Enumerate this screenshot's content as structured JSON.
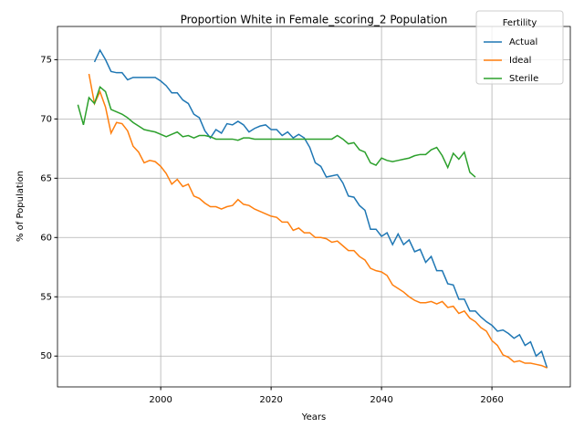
{
  "chart_data": {
    "type": "line",
    "title": "Proportion White in Female_scoring_2 Population",
    "x_label": "Years",
    "y_label": "% of Population",
    "legend_title": "Fertility",
    "legend_position": "upper right",
    "grid": true,
    "xlim": [
      1981.3,
      2074.2
    ],
    "ylim": [
      47.4,
      77.8
    ],
    "xticks": [
      2000,
      2020,
      2040,
      2060
    ],
    "yticks": [
      50,
      55,
      60,
      65,
      70,
      75
    ],
    "x": [
      1985,
      1986,
      1987,
      1988,
      1989,
      1990,
      1991,
      1992,
      1993,
      1994,
      1995,
      1996,
      1997,
      1998,
      1999,
      2000,
      2001,
      2002,
      2003,
      2004,
      2005,
      2006,
      2007,
      2008,
      2009,
      2010,
      2011,
      2012,
      2013,
      2014,
      2015,
      2016,
      2017,
      2018,
      2019,
      2020,
      2021,
      2022,
      2023,
      2024,
      2025,
      2026,
      2027,
      2028,
      2029,
      2030,
      2031,
      2032,
      2033,
      2034,
      2035,
      2036,
      2037,
      2038,
      2039,
      2040,
      2041,
      2042,
      2043,
      2044,
      2045,
      2046,
      2047,
      2048,
      2049,
      2050,
      2051,
      2052,
      2053,
      2054,
      2055,
      2056,
      2057,
      2058,
      2059,
      2060,
      2061,
      2062,
      2063,
      2064,
      2065,
      2066,
      2067,
      2068,
      2069,
      2070
    ],
    "series": [
      {
        "name": "Actual",
        "color": "#1f77b4",
        "values": [
          null,
          null,
          null,
          74.8,
          75.8,
          75.0,
          74.0,
          73.9,
          73.9,
          73.3,
          73.5,
          73.5,
          73.5,
          73.5,
          73.5,
          73.2,
          72.8,
          72.2,
          72.2,
          71.6,
          71.3,
          70.4,
          70.1,
          69.0,
          68.4,
          69.1,
          68.8,
          69.6,
          69.5,
          69.8,
          69.5,
          68.9,
          69.2,
          69.4,
          69.5,
          69.1,
          69.1,
          68.6,
          68.9,
          68.4,
          68.7,
          68.4,
          67.6,
          66.3,
          66.0,
          65.1,
          65.2,
          65.3,
          64.6,
          63.5,
          63.4,
          62.7,
          62.3,
          60.7,
          60.7,
          60.1,
          60.4,
          59.4,
          60.3,
          59.4,
          59.8,
          58.8,
          59.0,
          57.9,
          58.4,
          57.2,
          57.2,
          56.1,
          56.0,
          54.8,
          54.8,
          53.8,
          53.8,
          53.3,
          52.9,
          52.6,
          52.1,
          52.2,
          51.9,
          51.5,
          51.8,
          50.9,
          51.2,
          50.0,
          50.4,
          49.0
        ]
      },
      {
        "name": "Ideal",
        "color": "#ff7f0e",
        "values": [
          null,
          null,
          73.8,
          71.3,
          72.3,
          71.0,
          68.8,
          69.7,
          69.6,
          69.0,
          67.7,
          67.2,
          66.3,
          66.5,
          66.4,
          66.0,
          65.4,
          64.5,
          64.9,
          64.3,
          64.5,
          63.5,
          63.3,
          62.9,
          62.6,
          62.6,
          62.4,
          62.6,
          62.7,
          63.2,
          62.8,
          62.7,
          62.4,
          62.2,
          62.0,
          61.8,
          61.7,
          61.3,
          61.3,
          60.6,
          60.8,
          60.4,
          60.4,
          60.0,
          60.0,
          59.9,
          59.6,
          59.7,
          59.3,
          58.9,
          58.9,
          58.4,
          58.1,
          57.4,
          57.2,
          57.1,
          56.8,
          56.0,
          55.7,
          55.4,
          55.0,
          54.7,
          54.5,
          54.5,
          54.6,
          54.4,
          54.6,
          54.1,
          54.2,
          53.6,
          53.8,
          53.2,
          52.9,
          52.4,
          52.1,
          51.3,
          50.9,
          50.1,
          49.9,
          49.5,
          49.6,
          49.4,
          49.4,
          49.3,
          49.2,
          49.0
        ]
      },
      {
        "name": "Sterile",
        "color": "#2ca02c",
        "values": [
          71.2,
          69.5,
          71.8,
          71.3,
          72.7,
          72.3,
          70.8,
          70.6,
          70.4,
          70.1,
          69.7,
          69.4,
          69.1,
          69.0,
          68.9,
          68.7,
          68.5,
          68.7,
          68.9,
          68.5,
          68.6,
          68.4,
          68.6,
          68.6,
          68.5,
          68.3,
          68.3,
          68.3,
          68.3,
          68.2,
          68.4,
          68.4,
          68.3,
          68.3,
          68.3,
          68.3,
          68.3,
          68.3,
          68.3,
          68.3,
          68.3,
          68.3,
          68.3,
          68.3,
          68.3,
          68.3,
          68.3,
          68.6,
          68.3,
          67.9,
          68.0,
          67.4,
          67.2,
          66.3,
          66.1,
          66.7,
          66.5,
          66.4,
          66.5,
          66.6,
          66.7,
          66.9,
          67.0,
          67.0,
          67.4,
          67.6,
          66.9,
          65.9,
          67.1,
          66.6,
          67.2,
          65.5,
          65.1,
          null,
          null,
          null,
          null,
          null,
          null,
          null,
          null,
          null,
          null,
          null,
          null,
          null
        ]
      }
    ]
  }
}
